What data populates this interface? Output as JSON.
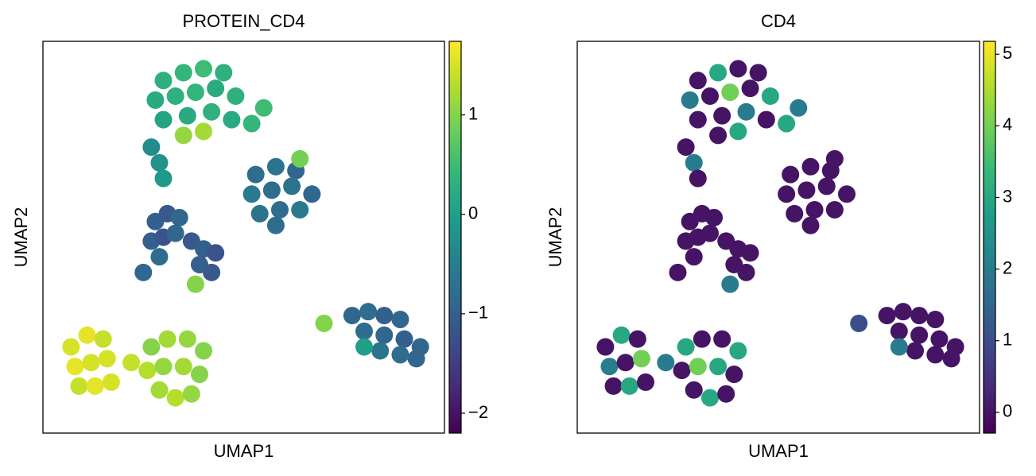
{
  "chart_data": [
    {
      "type": "scatter",
      "title": "PROTEIN_CD4",
      "x_label": "UMAP1",
      "y_label": "UMAP2",
      "xlim": [
        0,
        100
      ],
      "ylim": [
        0,
        100
      ],
      "colormap": "viridis",
      "clim": [
        -2.2,
        1.74
      ],
      "cticks": [
        {
          "value": -2,
          "label": "−2"
        },
        {
          "value": -1,
          "label": "−1"
        },
        0,
        1
      ],
      "x": [
        30,
        35,
        40,
        45,
        28,
        33,
        38,
        43,
        48,
        30,
        36,
        42,
        47,
        52,
        35,
        40,
        55,
        27,
        29,
        30,
        53,
        58,
        63,
        52,
        57,
        62,
        67,
        54,
        59,
        64,
        58,
        64,
        28,
        31,
        34,
        27,
        30,
        33,
        37,
        40,
        43,
        39,
        42,
        29,
        25,
        38,
        7,
        11,
        15,
        8,
        12,
        16,
        9,
        13,
        17,
        27,
        31,
        36,
        40,
        26,
        30,
        35,
        39,
        29,
        33,
        37,
        22,
        70,
        77,
        81,
        85,
        89,
        80,
        85,
        90,
        94,
        84,
        89,
        93,
        80
      ],
      "y": [
        90,
        92,
        93,
        92,
        85,
        86,
        87,
        88,
        86,
        80,
        81,
        82,
        80,
        79,
        76,
        77,
        83,
        73,
        69,
        65,
        66,
        68,
        67,
        61,
        62,
        63,
        61,
        56,
        57,
        57,
        53,
        70,
        54,
        56,
        55,
        49,
        50,
        51,
        49,
        47,
        46,
        43,
        41,
        45,
        41,
        38,
        22,
        25,
        24,
        17,
        18,
        19,
        12,
        12,
        13,
        22,
        24,
        24,
        21,
        16,
        17,
        17,
        15,
        11,
        9,
        10,
        18,
        28,
        30,
        31,
        30,
        29,
        26,
        25,
        24,
        22,
        21,
        20,
        19,
        22
      ],
      "values": [
        0.3,
        0.4,
        0.5,
        0.3,
        0.2,
        0.3,
        0.4,
        0.2,
        0.3,
        0.1,
        0.2,
        0.3,
        0.2,
        0.4,
        1.1,
        1.2,
        0.5,
        -0.3,
        -0.2,
        -0.1,
        -0.8,
        -0.7,
        -0.9,
        -0.6,
        -0.8,
        -0.7,
        -0.9,
        -0.7,
        -0.8,
        -0.6,
        -0.8,
        0.9,
        -1,
        -1.1,
        -0.9,
        -1,
        -1.2,
        -0.9,
        -1.1,
        -1,
        -1.2,
        -1,
        -1.1,
        -0.8,
        -0.9,
        1.0,
        1.5,
        1.6,
        1.4,
        1.6,
        1.5,
        1.5,
        1.4,
        1.6,
        1.5,
        1.0,
        1.2,
        1.1,
        1.0,
        1.3,
        1.1,
        1.2,
        1.0,
        1.2,
        1.3,
        1.1,
        1.4,
        1.0,
        -0.9,
        -0.8,
        -1,
        -0.9,
        -0.8,
        -0.9,
        -1,
        -0.9,
        -0.7,
        -0.8,
        -0.9,
        0.0
      ]
    },
    {
      "type": "scatter",
      "title": "CD4",
      "x_label": "UMAP1",
      "y_label": "UMAP2",
      "xlim": [
        0,
        100
      ],
      "ylim": [
        0,
        100
      ],
      "colormap": "viridis",
      "clim": [
        -0.29,
        5.18
      ],
      "cticks": [
        0,
        1,
        2,
        3,
        4,
        5
      ],
      "x": [
        30,
        35,
        40,
        45,
        28,
        33,
        38,
        43,
        48,
        30,
        36,
        42,
        47,
        52,
        35,
        40,
        55,
        27,
        29,
        30,
        53,
        58,
        63,
        52,
        57,
        62,
        67,
        54,
        59,
        64,
        58,
        64,
        28,
        31,
        34,
        27,
        30,
        33,
        37,
        40,
        43,
        39,
        42,
        29,
        25,
        38,
        7,
        11,
        15,
        8,
        12,
        16,
        9,
        13,
        17,
        27,
        31,
        36,
        40,
        26,
        30,
        35,
        39,
        29,
        33,
        37,
        22,
        70,
        77,
        81,
        85,
        89,
        80,
        85,
        90,
        94,
        84,
        89,
        93,
        80
      ],
      "y": [
        90,
        92,
        93,
        92,
        85,
        86,
        87,
        88,
        86,
        80,
        81,
        82,
        80,
        79,
        76,
        77,
        83,
        73,
        69,
        65,
        66,
        68,
        67,
        61,
        62,
        63,
        61,
        56,
        57,
        57,
        53,
        70,
        54,
        56,
        55,
        49,
        50,
        51,
        49,
        47,
        46,
        43,
        41,
        45,
        41,
        38,
        22,
        25,
        24,
        17,
        18,
        19,
        12,
        12,
        13,
        22,
        24,
        24,
        21,
        16,
        17,
        17,
        15,
        11,
        9,
        10,
        18,
        28,
        30,
        31,
        30,
        29,
        26,
        25,
        24,
        22,
        21,
        20,
        19,
        22
      ],
      "values": [
        0,
        3,
        0,
        0,
        2,
        0,
        4,
        0,
        3,
        0,
        0,
        2,
        0,
        3,
        0,
        3,
        2,
        0,
        2,
        0,
        0,
        0,
        0,
        0,
        0,
        0,
        0,
        0,
        0,
        0,
        0,
        0,
        0,
        0,
        0,
        0,
        0,
        0,
        0,
        0,
        0,
        0,
        0,
        0,
        0,
        2,
        0,
        3,
        0,
        2,
        0,
        4,
        0,
        3,
        0,
        3,
        0,
        0,
        3,
        0,
        4,
        3,
        0,
        0,
        3,
        0,
        2,
        1,
        0,
        0,
        0,
        0,
        0,
        0,
        0,
        0,
        0,
        0,
        0,
        2
      ]
    }
  ]
}
